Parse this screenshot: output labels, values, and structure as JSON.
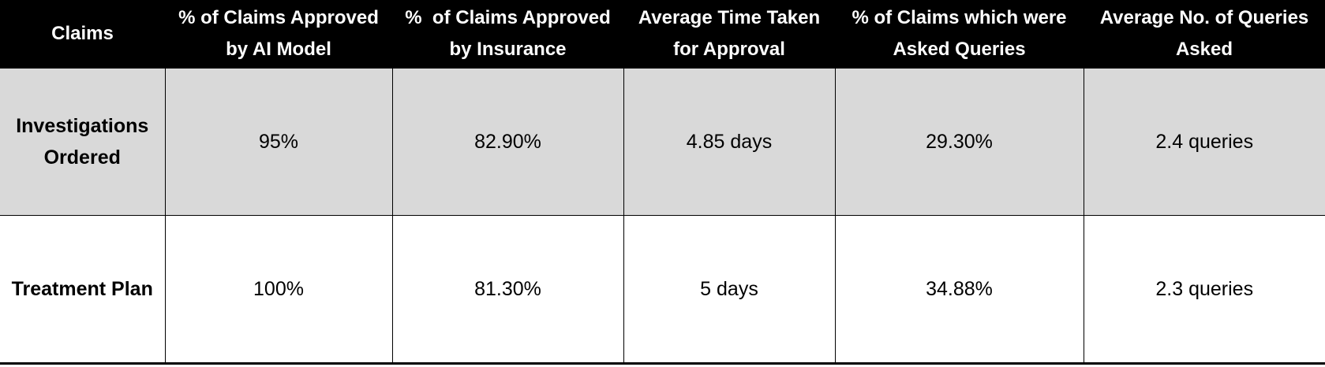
{
  "table": {
    "header": [
      [
        "Claims"
      ],
      [
        "% of Claims Approved",
        "by AI Model"
      ],
      [
        "%  of Claims Approved",
        "by Insurance"
      ],
      [
        "Average Time Taken",
        "for Approval"
      ],
      [
        "% of Claims which were",
        "Asked Queries"
      ],
      [
        "Average No. of Queries",
        "Asked"
      ]
    ],
    "rows": [
      [
        [
          "Investigations",
          "Ordered"
        ],
        "95%",
        "82.90%",
        "4.85 days",
        "29.30%",
        "2.4 queries"
      ],
      [
        [
          "Treatment Plan"
        ],
        "100%",
        "81.30%",
        "5 days",
        "34.88%",
        "2.3 queries"
      ]
    ]
  }
}
